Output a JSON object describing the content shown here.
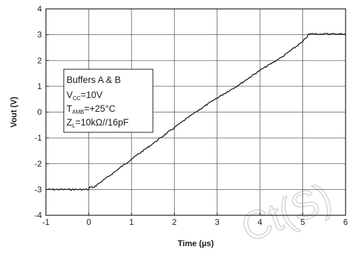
{
  "chart_data": {
    "type": "line",
    "title": "",
    "xlabel": "Time (µs)",
    "ylabel": "Vout (V)",
    "xlim": [
      -1,
      6
    ],
    "ylim": [
      -4,
      4
    ],
    "x_ticks": [
      "-1",
      "0",
      "1",
      "2",
      "3",
      "4",
      "5",
      "6"
    ],
    "y_ticks": [
      "-4",
      "-3",
      "-2",
      "-1",
      "0",
      "1",
      "2",
      "3",
      "4"
    ],
    "grid": true,
    "legend": {
      "placement": "upper-left",
      "title": "Buffers A & B",
      "lines": [
        {
          "base": "V",
          "sub": "CC",
          "rest": "=10V"
        },
        {
          "base": "T",
          "sub": "AMB",
          "rest": "=+25°C"
        },
        {
          "base": "Z",
          "sub": "L",
          "rest": "=10kΩ//16pF"
        }
      ]
    },
    "series": [
      {
        "x": [
          -1.0,
          -0.5,
          0.0,
          0.02,
          0.1,
          0.5,
          1.0,
          1.5,
          2.0,
          2.5,
          3.0,
          3.5,
          4.0,
          4.5,
          5.0,
          5.15,
          5.5,
          6.0
        ],
        "y": [
          -3.0,
          -3.0,
          -3.0,
          -2.9,
          -2.93,
          -2.45,
          -1.82,
          -1.22,
          -0.6,
          0.0,
          0.55,
          1.05,
          1.62,
          2.12,
          2.73,
          3.03,
          3.03,
          3.03
        ]
      }
    ]
  },
  "watermark": {
    "text": "Ct(S)"
  }
}
